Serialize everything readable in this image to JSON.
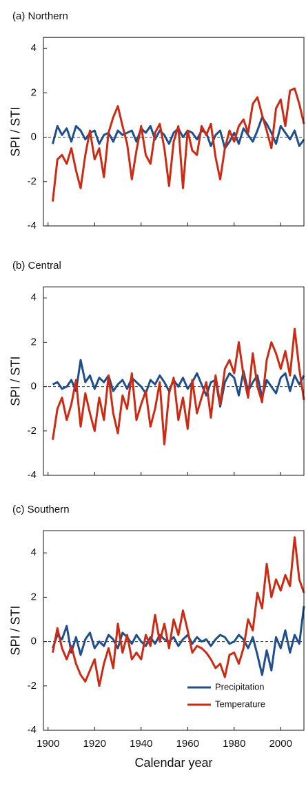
{
  "chart_data": [
    {
      "type": "line",
      "title": "(a) Northern",
      "ylabel": "SPI / STI",
      "x": [
        1902,
        1904,
        1906,
        1908,
        1910,
        1912,
        1914,
        1916,
        1918,
        1920,
        1922,
        1924,
        1926,
        1928,
        1930,
        1932,
        1934,
        1936,
        1938,
        1940,
        1942,
        1944,
        1946,
        1948,
        1950,
        1952,
        1954,
        1956,
        1958,
        1960,
        1962,
        1964,
        1966,
        1968,
        1970,
        1972,
        1974,
        1976,
        1978,
        1980,
        1982,
        1984,
        1986,
        1988,
        1990,
        1992,
        1994,
        1996,
        1998,
        2000,
        2002,
        2004,
        2006,
        2008,
        2010
      ],
      "series": [
        {
          "color": "#1f4e8c",
          "values": [
            -0.3,
            0.5,
            0.1,
            0.4,
            -0.2,
            0.5,
            0.3,
            -0.1,
            0.2,
            0.3,
            -0.3,
            0.1,
            0.2,
            -0.2,
            0.3,
            0.1,
            0.2,
            0.3,
            -0.2,
            0.4,
            0.2,
            0.5,
            -0.1,
            0.3,
            0.1,
            -0.3,
            0.2,
            0.4,
            0.0,
            0.3,
            0.2,
            -0.1,
            0.3,
            0.2,
            -0.4,
            0.1,
            0.3,
            -0.5,
            -0.2,
            0.2,
            -0.3,
            0.4,
            0.1,
            -0.2,
            0.3,
            0.9,
            0.6,
            0.2,
            -0.3,
            0.5,
            0.2,
            -0.1,
            0.3,
            -0.4,
            -0.1
          ]
        },
        {
          "color": "#cc2a12",
          "values": [
            -2.9,
            -1.0,
            -0.8,
            -1.2,
            -0.5,
            -1.5,
            -2.3,
            -0.8,
            0.3,
            -1.0,
            -0.5,
            -1.8,
            0.2,
            0.9,
            1.4,
            0.5,
            -0.3,
            -1.9,
            -0.6,
            0.5,
            -0.8,
            -1.2,
            0.2,
            0.6,
            -0.5,
            -2.2,
            -0.2,
            0.5,
            -2.3,
            0.3,
            -0.6,
            -0.8,
            0.5,
            0.1,
            0.6,
            -0.9,
            -1.9,
            -0.5,
            0.3,
            -0.2,
            0.5,
            0.8,
            0.2,
            1.5,
            1.8,
            1.0,
            0.3,
            -0.5,
            1.3,
            1.7,
            0.5,
            2.1,
            2.2,
            1.5,
            0.6
          ]
        }
      ],
      "xlim": [
        1898,
        2010
      ],
      "ylim": [
        -4,
        4.5
      ],
      "yticks": [
        -4,
        -2,
        0,
        2,
        4
      ],
      "xticks": [
        1900,
        1920,
        1940,
        1960,
        1980,
        2000
      ],
      "xtick_labels": false,
      "zero_line": true
    },
    {
      "type": "line",
      "title": "(b) Central",
      "ylabel": "SPI / STI",
      "x": [
        1902,
        1904,
        1906,
        1908,
        1910,
        1912,
        1914,
        1916,
        1918,
        1920,
        1922,
        1924,
        1926,
        1928,
        1930,
        1932,
        1934,
        1936,
        1938,
        1940,
        1942,
        1944,
        1946,
        1948,
        1950,
        1952,
        1954,
        1956,
        1958,
        1960,
        1962,
        1964,
        1966,
        1968,
        1970,
        1972,
        1974,
        1976,
        1978,
        1980,
        1982,
        1984,
        1986,
        1988,
        1990,
        1992,
        1994,
        1996,
        1998,
        2000,
        2002,
        2004,
        2006,
        2008,
        2010
      ],
      "series": [
        {
          "color": "#1f4e8c",
          "values": [
            0.1,
            0.2,
            -0.1,
            0.0,
            0.3,
            -0.2,
            1.2,
            0.2,
            0.5,
            -0.1,
            0.4,
            0.2,
            0.5,
            -0.2,
            0.1,
            0.3,
            -0.1,
            0.4,
            0.2,
            0.0,
            -0.3,
            0.3,
            0.1,
            0.5,
            0.2,
            -0.2,
            0.3,
            0.0,
            0.4,
            -0.1,
            0.2,
            0.6,
            0.1,
            -0.4,
            0.2,
            0.3,
            -0.9,
            0.2,
            0.6,
            0.4,
            -0.4,
            0.7,
            -0.2,
            0.2,
            0.5,
            -0.5,
            0.3,
            0.0,
            -0.3,
            0.4,
            0.6,
            -0.2,
            0.5,
            0.1,
            0.5
          ]
        },
        {
          "color": "#cc2a12",
          "values": [
            -2.4,
            -1.0,
            -0.5,
            -1.5,
            -0.8,
            0.3,
            -1.8,
            -0.3,
            -1.2,
            -2.0,
            -0.5,
            -1.5,
            0.5,
            -1.2,
            -2.1,
            -0.4,
            -1.0,
            0.6,
            -1.5,
            -0.8,
            -0.2,
            -1.8,
            -1.0,
            0.2,
            -2.6,
            -0.3,
            0.4,
            -1.5,
            -0.5,
            -1.9,
            0.3,
            -1.2,
            -0.5,
            0.2,
            -1.4,
            0.5,
            -0.8,
            0.8,
            1.2,
            0.6,
            2.0,
            0.5,
            -0.5,
            1.5,
            0.0,
            -0.7,
            1.2,
            2.0,
            1.5,
            0.8,
            1.6,
            0.5,
            2.6,
            0.8,
            -0.6
          ]
        }
      ],
      "xlim": [
        1898,
        2010
      ],
      "ylim": [
        -4,
        4.5
      ],
      "yticks": [
        -4,
        -2,
        0,
        2,
        4
      ],
      "xticks": [
        1900,
        1920,
        1940,
        1960,
        1980,
        2000
      ],
      "xtick_labels": false,
      "zero_line": true
    },
    {
      "type": "line",
      "title": "(c) Southern",
      "ylabel": "SPI / STI",
      "xlabel": "Calendar year",
      "x": [
        1902,
        1904,
        1906,
        1908,
        1910,
        1912,
        1914,
        1916,
        1918,
        1920,
        1922,
        1924,
        1926,
        1928,
        1930,
        1932,
        1934,
        1936,
        1938,
        1940,
        1942,
        1944,
        1946,
        1948,
        1950,
        1952,
        1954,
        1956,
        1958,
        1960,
        1962,
        1964,
        1966,
        1968,
        1970,
        1972,
        1974,
        1976,
        1978,
        1980,
        1982,
        1984,
        1986,
        1988,
        1990,
        1992,
        1994,
        1996,
        1998,
        2000,
        2002,
        2004,
        2006,
        2008,
        2010
      ],
      "series": [
        {
          "name": "Precipitation",
          "color": "#1f4e8c",
          "values": [
            -0.3,
            0.3,
            0.1,
            0.7,
            -0.5,
            0.2,
            -0.6,
            0.1,
            0.4,
            -0.3,
            0.0,
            -0.2,
            0.3,
            0.1,
            -0.3,
            0.4,
            0.2,
            -0.1,
            0.3,
            0.0,
            -0.2,
            0.2,
            -0.1,
            0.3,
            0.1,
            0.0,
            0.2,
            -0.2,
            0.1,
            0.3,
            -0.1,
            0.2,
            0.0,
            0.1,
            -0.2,
            0.1,
            0.3,
            0.2,
            -0.1,
            0.0,
            0.3,
            0.1,
            -0.3,
            0.2,
            -0.6,
            -1.5,
            -0.4,
            -1.3,
            0.2,
            -0.3,
            0.5,
            -0.5,
            0.3,
            -0.1,
            1.6
          ]
        },
        {
          "name": "Temperature",
          "color": "#cc2a12",
          "values": [
            -0.5,
            0.6,
            -0.3,
            -0.8,
            -0.2,
            -1.0,
            -1.5,
            -1.8,
            -1.3,
            -0.8,
            -2.0,
            -1.0,
            -0.3,
            -1.2,
            0.8,
            -0.5,
            0.3,
            -0.8,
            -0.5,
            -0.8,
            0.3,
            -0.2,
            1.2,
            0.0,
            0.8,
            -0.3,
            1.0,
            0.3,
            1.4,
            0.5,
            -0.5,
            -0.2,
            -0.3,
            -0.5,
            -0.8,
            -1.2,
            -1.0,
            -1.6,
            -0.6,
            -0.5,
            -1.0,
            -0.3,
            1.0,
            0.5,
            2.2,
            1.5,
            3.5,
            2.0,
            2.8,
            2.3,
            3.0,
            2.5,
            4.7,
            2.8,
            2.2
          ]
        }
      ],
      "xlim": [
        1898,
        2010
      ],
      "ylim": [
        -4,
        5
      ],
      "yticks": [
        -4,
        -2,
        0,
        2,
        4
      ],
      "xticks": [
        1900,
        1920,
        1940,
        1960,
        1980,
        2000
      ],
      "xtick_labels": true,
      "zero_line": true,
      "legend": "lower right"
    }
  ]
}
